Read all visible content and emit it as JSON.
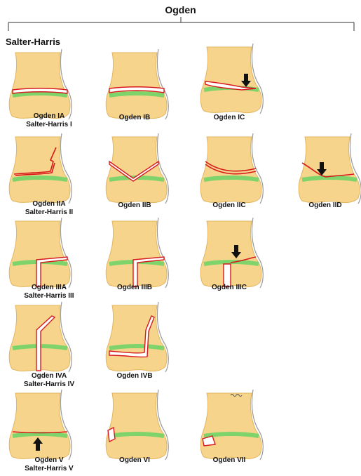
{
  "title": "Ogden",
  "section_label": "Salter-Harris",
  "panels": [
    {
      "line1": "Ogden IA",
      "line2": "Salter-Harris I"
    },
    {
      "line1": "Ogden IB",
      "line2": ""
    },
    {
      "line1": "Ogden IC",
      "line2": ""
    },
    {
      "line1": "Ogden IIA",
      "line2": "Salter-Harris II"
    },
    {
      "line1": "Ogden IIB",
      "line2": ""
    },
    {
      "line1": "Ogden IIC",
      "line2": ""
    },
    {
      "line1": "Ogden IID",
      "line2": ""
    },
    {
      "line1": "Ogden IIIA",
      "line2": "Salter-Harris III"
    },
    {
      "line1": "Ogden IIIB",
      "line2": ""
    },
    {
      "line1": "Ogden IIIC",
      "line2": ""
    },
    {
      "line1": "Ogden IVA",
      "line2": "Salter-Harris IV"
    },
    {
      "line1": "Ogden IVB",
      "line2": ""
    },
    {
      "line1": "Ogden V",
      "line2": "Salter-Harris V"
    },
    {
      "line1": "Ogden VI",
      "line2": ""
    },
    {
      "line1": "Ogden VII",
      "line2": ""
    }
  ],
  "colors": {
    "bone": "#f6d48c",
    "bone_shade": "#e2b45c",
    "physis": "#7fd36b",
    "fracture": "#d7191c",
    "arrow": "#111111",
    "soft_tissue": "#9a9a9a"
  }
}
